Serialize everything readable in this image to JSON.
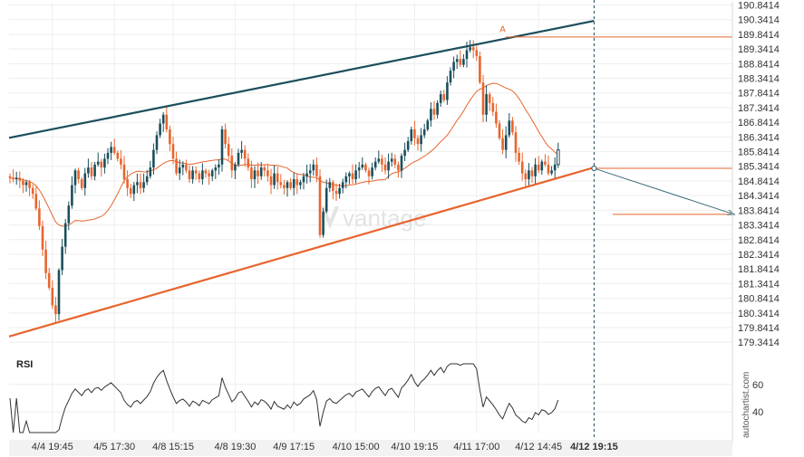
{
  "chart_data": {
    "type": "candlestick",
    "price_axis": {
      "ticks": [
        "190.8414",
        "190.3414",
        "189.8414",
        "189.3414",
        "188.8414",
        "188.3414",
        "187.8414",
        "187.3414",
        "186.8414",
        "186.3414",
        "185.8414",
        "185.3414",
        "184.8414",
        "184.3414",
        "183.8414",
        "183.3414",
        "182.8414",
        "182.3414",
        "181.8414",
        "181.3414",
        "180.8414",
        "180.3414",
        "179.8414",
        "179.3414"
      ],
      "range": [
        179.1,
        190.95
      ]
    },
    "x_axis": {
      "labels": [
        {
          "text": "4/4 19:45",
          "i": 13
        },
        {
          "text": "4/5 17:30",
          "i": 32
        },
        {
          "text": "4/8 15:15",
          "i": 50
        },
        {
          "text": "4/8 19:30",
          "i": 69
        },
        {
          "text": "4/9 17:15",
          "i": 87
        },
        {
          "text": "4/10 15:00",
          "i": 106
        },
        {
          "text": "4/10 19:15",
          "i": 124
        },
        {
          "text": "4/11 17:00",
          "i": 143
        },
        {
          "text": "4/12 14:45",
          "i": 162
        },
        {
          "text": "4/12 19:15",
          "i": 179,
          "bold": true
        }
      ]
    },
    "colors": {
      "up": "#1b4f5c",
      "down": "#e8652e",
      "ma": "#e8652e",
      "resistance": "#1b4f5c",
      "support": "#e8652e",
      "rsi": "#333333",
      "grid": "#eeeeee"
    },
    "closes": [
      184.95,
      184.9,
      184.95,
      184.85,
      184.7,
      184.8,
      184.6,
      184.4,
      183.9,
      183.3,
      182.5,
      181.7,
      181.2,
      180.6,
      180.3,
      181.8,
      182.6,
      183.4,
      184.0,
      184.7,
      185.2,
      184.9,
      184.6,
      185.1,
      185.3,
      185.0,
      185.4,
      185.5,
      185.3,
      185.6,
      185.8,
      186.0,
      185.8,
      185.6,
      185.4,
      184.9,
      184.6,
      184.4,
      184.7,
      184.8,
      184.6,
      184.8,
      185.0,
      185.3,
      185.9,
      186.4,
      186.8,
      187.1,
      186.6,
      186.1,
      185.6,
      185.1,
      185.3,
      185.4,
      185.2,
      184.9,
      185.2,
      185.1,
      184.9,
      185.2,
      185.1,
      185.0,
      185.2,
      185.3,
      185.4,
      186.6,
      186.1,
      185.7,
      185.2,
      185.4,
      185.8,
      185.9,
      185.6,
      185.3,
      184.9,
      185.2,
      185.0,
      185.3,
      185.2,
      185.0,
      184.7,
      185.1,
      184.8,
      184.7,
      184.6,
      184.8,
      184.6,
      184.9,
      184.7,
      184.8,
      185.0,
      185.1,
      185.2,
      185.4,
      185.0,
      183.0,
      183.8,
      184.6,
      184.8,
      184.5,
      184.4,
      184.6,
      184.8,
      185.0,
      185.1,
      184.9,
      185.2,
      185.3,
      185.4,
      185.2,
      185.0,
      185.3,
      185.5,
      185.6,
      185.4,
      185.2,
      185.5,
      185.6,
      185.4,
      185.2,
      185.7,
      185.9,
      186.2,
      186.6,
      186.3,
      186.1,
      186.4,
      186.6,
      186.9,
      187.3,
      187.1,
      187.5,
      187.8,
      187.6,
      188.2,
      188.6,
      188.9,
      189.0,
      188.8,
      189.0,
      189.3,
      189.4,
      189.3,
      189.1,
      188.2,
      187.1,
      187.8,
      187.5,
      187.2,
      186.8,
      186.3,
      185.9,
      186.4,
      186.9,
      186.5,
      185.8,
      185.5,
      185.1,
      184.9,
      185.2,
      185.0,
      185.4,
      185.2,
      185.5,
      185.4,
      185.1,
      185.2,
      185.4,
      185.9
    ],
    "ma_length": 21,
    "rsi_axis": {
      "ticks": [
        "60",
        "40"
      ]
    },
    "pattern": {
      "resistance": {
        "from": {
          "i": -3,
          "price": 186.25
        },
        "to": {
          "i": 179,
          "price": 190.3
        }
      },
      "support": {
        "from": {
          "i": -3,
          "price": 179.45
        },
        "to": {
          "i": 179,
          "price": 185.3
        }
      },
      "high_level": {
        "price": 189.75,
        "from_i": 152
      },
      "breakout_level": {
        "price": 185.27,
        "from_i": 179
      },
      "target_level": {
        "price": 183.7
      },
      "projection": {
        "from": {
          "i": 179,
          "price": 185.27
        },
        "to": {
          "i": 222,
          "price": 183.7
        }
      },
      "marker": {
        "i": 151,
        "price": 189.85,
        "label": "A"
      }
    }
  },
  "panel": {
    "rsi_label": "RSI"
  },
  "watermark": "vantage",
  "brand": "autochartist.com"
}
